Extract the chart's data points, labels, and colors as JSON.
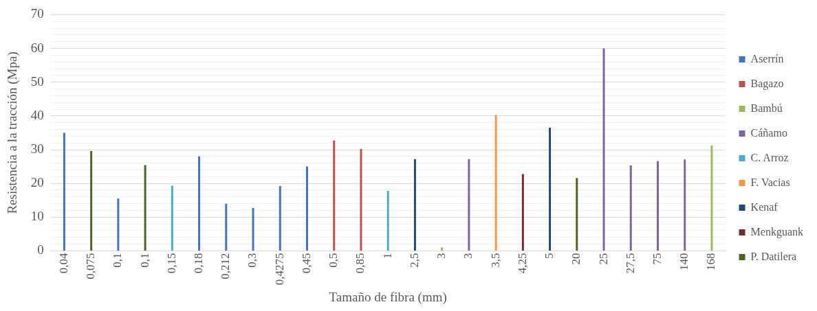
{
  "chart_data": {
    "type": "bar",
    "xlabel": "Tamaño de fibra (mm)",
    "ylabel": "Resistencia a la tracción (Mpa)",
    "categories": [
      "0,04",
      "0,075",
      "0,1",
      "0,1",
      "0,15",
      "0,18",
      "0,212",
      "0,3",
      "0,4275",
      "0,45",
      "0,5",
      "0,85",
      "1",
      "2,5",
      "3",
      "3",
      "3,5",
      "4,25",
      "5",
      "20",
      "25",
      "27,5",
      "75",
      "140",
      "168"
    ],
    "series": [
      {
        "name": "Aserrín",
        "color": "#4472c4",
        "values": [
          35,
          null,
          15.5,
          null,
          null,
          28,
          14,
          12.7,
          19.2,
          25,
          null,
          null,
          null,
          null,
          null,
          null,
          null,
          null,
          null,
          null,
          null,
          null,
          null,
          null,
          null
        ]
      },
      {
        "name": "Bagazo",
        "color": "#c0504d",
        "values": [
          null,
          null,
          null,
          null,
          null,
          null,
          null,
          null,
          null,
          null,
          32.7,
          30.2,
          null,
          null,
          null,
          null,
          null,
          null,
          null,
          null,
          null,
          null,
          null,
          null,
          null
        ]
      },
      {
        "name": "Bambú",
        "color": "#9bbb59",
        "values": [
          null,
          null,
          null,
          null,
          null,
          null,
          null,
          null,
          null,
          null,
          null,
          null,
          null,
          null,
          1,
          null,
          null,
          null,
          null,
          null,
          null,
          null,
          null,
          null,
          31.2
        ]
      },
      {
        "name": "Cáñamo",
        "color": "#8064a2",
        "values": [
          null,
          null,
          null,
          null,
          null,
          null,
          null,
          null,
          null,
          null,
          null,
          null,
          null,
          null,
          null,
          27.2,
          null,
          null,
          null,
          null,
          60,
          25.3,
          26.6,
          27.1,
          null
        ]
      },
      {
        "name": "C. Arroz",
        "color": "#4bacc6",
        "values": [
          null,
          null,
          null,
          null,
          19.3,
          null,
          null,
          null,
          null,
          null,
          null,
          null,
          17.8,
          null,
          null,
          null,
          null,
          null,
          null,
          null,
          null,
          null,
          null,
          null,
          null
        ]
      },
      {
        "name": "F. Vacias",
        "color": "#f79646",
        "values": [
          null,
          null,
          null,
          null,
          null,
          null,
          null,
          null,
          null,
          null,
          null,
          null,
          null,
          null,
          null,
          null,
          40.3,
          null,
          null,
          null,
          null,
          null,
          null,
          null,
          null
        ]
      },
      {
        "name": "Kenaf",
        "color": "#1f497d",
        "values": [
          null,
          null,
          null,
          null,
          null,
          null,
          null,
          null,
          null,
          null,
          null,
          null,
          null,
          27.2,
          null,
          null,
          null,
          null,
          36.5,
          null,
          null,
          null,
          null,
          null,
          null
        ]
      },
      {
        "name": "Menkguank",
        "color": "#772c2a",
        "values": [
          null,
          null,
          null,
          null,
          null,
          null,
          null,
          null,
          null,
          null,
          null,
          null,
          null,
          null,
          null,
          null,
          null,
          22.8,
          null,
          null,
          null,
          null,
          null,
          null,
          null
        ]
      },
      {
        "name": "P. Datilera",
        "color": "#4f6228",
        "values": [
          null,
          29.6,
          null,
          25.4,
          null,
          null,
          null,
          null,
          null,
          null,
          null,
          null,
          null,
          null,
          null,
          null,
          null,
          null,
          null,
          21.6,
          null,
          null,
          null,
          null,
          null
        ]
      }
    ],
    "ylim": [
      0,
      70
    ],
    "yticks": [
      0,
      {
        "value": 2,
        "label": null
      },
      {
        "value": 4,
        "label": null
      },
      {
        "value": 6,
        "label": null
      },
      {
        "value": 8,
        "label": null
      },
      10,
      {
        "value": 12,
        "label": null
      },
      {
        "value": 14,
        "label": null
      },
      {
        "value": 16,
        "label": null
      },
      {
        "value": 18,
        "label": null
      },
      20,
      {
        "value": 22,
        "label": null
      },
      {
        "value": 24,
        "label": null
      },
      {
        "value": 26,
        "label": null
      },
      {
        "value": 28,
        "label": null
      },
      30,
      {
        "value": 32,
        "label": null
      },
      {
        "value": 34,
        "label": null
      },
      {
        "value": 36,
        "label": null
      },
      {
        "value": 38,
        "label": null
      },
      40,
      {
        "value": 42,
        "label": null
      },
      {
        "value": 44,
        "label": null
      },
      {
        "value": 46,
        "label": null
      },
      {
        "value": 48,
        "label": null
      },
      50,
      {
        "value": 52,
        "label": null
      },
      {
        "value": 54,
        "label": null
      },
      {
        "value": 56,
        "label": null
      },
      {
        "value": 58,
        "label": null
      },
      60,
      {
        "value": 62,
        "label": null
      },
      {
        "value": 64,
        "label": null
      },
      {
        "value": 66,
        "label": null
      },
      {
        "value": 68,
        "label": null
      },
      70
    ],
    "grid": "y",
    "legend": "right"
  }
}
